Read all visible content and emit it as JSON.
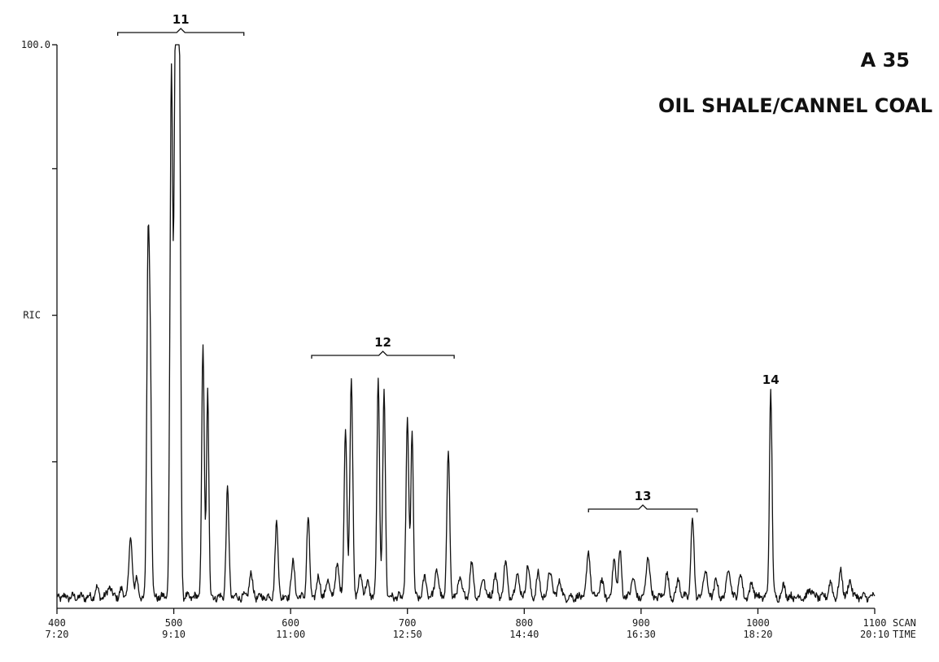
{
  "sample_code": "A 35",
  "sample_title": "OIL SHALE/CANNEL COAL",
  "chart_data": {
    "type": "line",
    "title": "OIL SHALE/CANNEL COAL",
    "ylabel": "RIC",
    "y_top_label": "100.0",
    "x_axis_name_scan": "SCAN",
    "x_axis_name_time": "TIME",
    "xlim": [
      400,
      1100
    ],
    "ylim": [
      0,
      100
    ],
    "grid": false,
    "x_ticks": [
      {
        "scan": "400",
        "time": "7:20"
      },
      {
        "scan": "500",
        "time": "9:10"
      },
      {
        "scan": "600",
        "time": "11:00"
      },
      {
        "scan": "700",
        "time": "12:50"
      },
      {
        "scan": "800",
        "time": "14:40"
      },
      {
        "scan": "900",
        "time": "16:30"
      },
      {
        "scan": "1000",
        "time": "18:20"
      },
      {
        "scan": "1100",
        "time": "20:10"
      }
    ],
    "y_ticks": [
      0,
      26,
      52,
      78,
      100
    ],
    "peak_groups": [
      {
        "label": "11",
        "scan_start": 452,
        "scan_end": 560
      },
      {
        "label": "12",
        "scan_start": 618,
        "scan_end": 740
      },
      {
        "label": "13",
        "scan_start": 855,
        "scan_end": 948
      },
      {
        "label": "14",
        "scan": 1011
      }
    ],
    "baseline": 2,
    "peaks": [
      [
        434,
        1.5,
        1.5
      ],
      [
        445,
        2,
        1.5
      ],
      [
        455,
        1.2,
        1.5
      ],
      [
        463,
        10,
        1.5
      ],
      [
        468,
        3.5,
        1.2
      ],
      [
        478,
        61,
        1.1
      ],
      [
        480,
        36,
        1.0
      ],
      [
        498,
        94,
        1.2
      ],
      [
        501,
        80,
        0.9
      ],
      [
        503,
        98,
        1.0
      ],
      [
        505,
        82,
        1.0
      ],
      [
        525,
        44,
        1.1
      ],
      [
        529,
        37,
        1.0
      ],
      [
        546,
        19,
        1.2
      ],
      [
        566,
        4,
        1.5
      ],
      [
        588,
        13,
        1.3
      ],
      [
        602,
        6,
        1.5
      ],
      [
        615,
        14,
        1.2
      ],
      [
        624,
        3.5,
        1.5
      ],
      [
        632,
        3,
        1.5
      ],
      [
        640,
        6,
        1.5
      ],
      [
        647,
        30,
        1.2
      ],
      [
        652,
        39,
        1.2
      ],
      [
        660,
        4,
        1.5
      ],
      [
        666,
        2.5,
        1.5
      ],
      [
        675,
        39,
        1.1
      ],
      [
        680,
        37,
        1.1
      ],
      [
        700,
        31,
        1.2
      ],
      [
        704,
        30,
        1.0
      ],
      [
        715,
        3.5,
        1.5
      ],
      [
        725,
        5,
        1.5
      ],
      [
        735,
        26,
        1.2
      ],
      [
        745,
        3.5,
        1.5
      ],
      [
        755,
        6,
        1.5
      ],
      [
        765,
        3.5,
        1.5
      ],
      [
        775,
        4,
        1.5
      ],
      [
        784,
        6,
        1.5
      ],
      [
        794,
        4.5,
        1.5
      ],
      [
        803,
        5.5,
        1.5
      ],
      [
        812,
        4,
        1.5
      ],
      [
        822,
        5,
        1.5
      ],
      [
        830,
        3,
        1.5
      ],
      [
        855,
        8,
        1.5
      ],
      [
        866,
        3,
        1.5
      ],
      [
        877,
        7,
        1.3
      ],
      [
        882,
        8,
        1.3
      ],
      [
        893,
        3.5,
        1.5
      ],
      [
        906,
        7.5,
        1.5
      ],
      [
        922,
        4,
        1.5
      ],
      [
        932,
        3,
        1.5
      ],
      [
        944,
        14,
        1.3
      ],
      [
        955,
        5,
        1.5
      ],
      [
        964,
        3,
        1.5
      ],
      [
        975,
        5.5,
        1.5
      ],
      [
        985,
        4,
        1.5
      ],
      [
        995,
        2.5,
        1.5
      ],
      [
        1011,
        37,
        1.1
      ],
      [
        1022,
        2,
        1.5
      ],
      [
        1045,
        1.5,
        1.5
      ],
      [
        1062,
        2.5,
        1.5
      ],
      [
        1071,
        4.5,
        1.5
      ],
      [
        1079,
        3,
        1.5
      ]
    ]
  }
}
